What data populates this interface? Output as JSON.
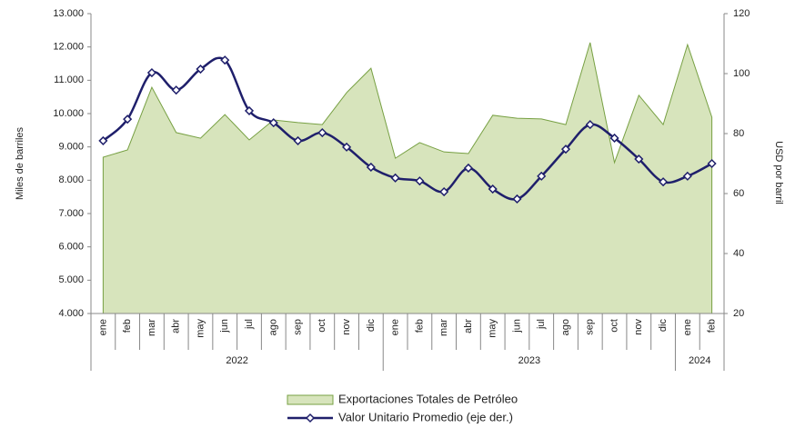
{
  "chart_data": {
    "type": "area-line",
    "groups": [
      {
        "label": "2022",
        "categories": [
          "ene",
          "feb",
          "mar",
          "abr",
          "may",
          "jun",
          "jul",
          "ago",
          "sep",
          "oct",
          "nov",
          "dic"
        ]
      },
      {
        "label": "2023",
        "categories": [
          "ene",
          "feb",
          "mar",
          "abr",
          "may",
          "jun",
          "jul",
          "ago",
          "sep",
          "oct",
          "nov",
          "dic"
        ]
      },
      {
        "label": "2024",
        "categories": [
          "ene",
          "feb"
        ]
      }
    ],
    "ylabel": "Miles de barriles",
    "y2label": "USD por barril",
    "ylim": [
      4000,
      13000
    ],
    "yticks": [
      {
        "value": 4000,
        "label": "4.000"
      },
      {
        "value": 5000,
        "label": "5.000"
      },
      {
        "value": 6000,
        "label": "6.000"
      },
      {
        "value": 7000,
        "label": "7.000"
      },
      {
        "value": 8000,
        "label": "8.000"
      },
      {
        "value": 9000,
        "label": "9.000"
      },
      {
        "value": 10000,
        "label": "10.000"
      },
      {
        "value": 11000,
        "label": "11.000"
      },
      {
        "value": 12000,
        "label": "12.000"
      },
      {
        "value": 13000,
        "label": "13.000"
      }
    ],
    "y2lim": [
      20,
      120
    ],
    "y2ticks": [
      20,
      40,
      60,
      80,
      100,
      120
    ],
    "series": [
      {
        "name": "Exportaciones Totales de Petróleo",
        "type": "area",
        "color": "#d7e4bc",
        "stroke": "#77a043",
        "values": [
          8690,
          8910,
          10790,
          9430,
          9260,
          9970,
          9210,
          9810,
          9730,
          9670,
          10630,
          11360,
          8660,
          9130,
          8850,
          8800,
          9950,
          9860,
          9840,
          9670,
          12130,
          8530,
          10550,
          9670,
          12070,
          9890
        ]
      },
      {
        "name": "Valor Unitario Promedio (eje der.)",
        "type": "line",
        "axis": "y2",
        "color": "#1f1f6b",
        "values": [
          77.6,
          84.8,
          100.3,
          94.5,
          101.5,
          104.5,
          87.6,
          83.6,
          77.6,
          80.3,
          75.5,
          68.8,
          65.2,
          64.2,
          60.6,
          68.5,
          61.5,
          58.2,
          65.8,
          74.8,
          83.0,
          78.5,
          71.5,
          63.9,
          65.8,
          70.0
        ]
      }
    ]
  }
}
